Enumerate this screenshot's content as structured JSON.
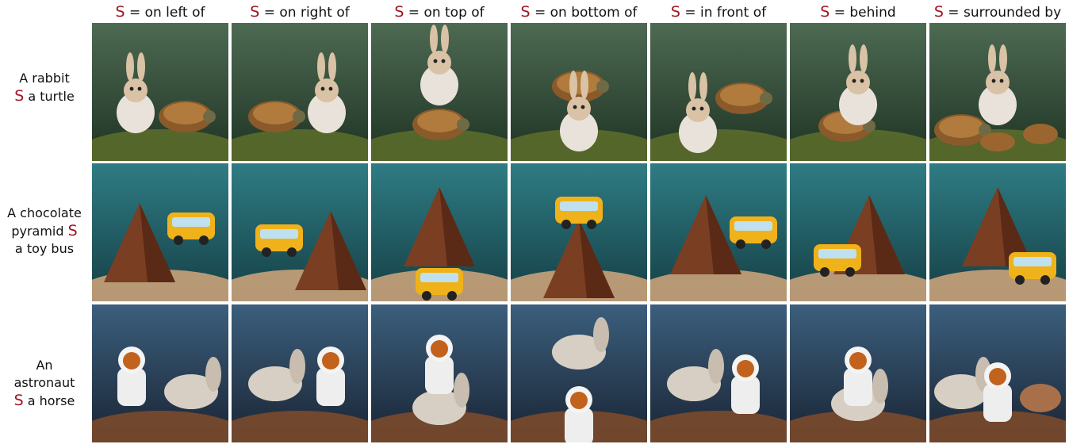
{
  "marker": "S",
  "columns": [
    {
      "relation": " = on left of"
    },
    {
      "relation": " = on right of"
    },
    {
      "relation": " = on top of"
    },
    {
      "relation": " = on bottom of"
    },
    {
      "relation": " = in front of"
    },
    {
      "relation": " = behind"
    },
    {
      "relation": " = surrounded by"
    }
  ],
  "rows": [
    {
      "line1": "A rabbit",
      "line2_marker": "S",
      "line2": " a turtle",
      "subject": "rabbit",
      "object": "turtle",
      "colors": {
        "bg1": "#4d6a52",
        "bg2": "#1f3324",
        "ground": "#5a6b2a"
      }
    },
    {
      "line1": "A chocolate",
      "line2_pre": "pyramid ",
      "line2_marker": "S",
      "line3": "a toy bus",
      "subject": "chocolate-pyramid",
      "object": "toy-bus",
      "colors": {
        "bg1": "#2f7c84",
        "bg2": "#153f45",
        "ground": "#c9a27a"
      }
    },
    {
      "line1": "An",
      "line2": "astronaut",
      "line3_marker": "S",
      "line3": " a horse",
      "subject": "astronaut",
      "object": "horse",
      "colors": {
        "bg1": "#3b5f7d",
        "bg2": "#1a2434",
        "ground": "#7a4a2c"
      }
    }
  ],
  "accent_color": "#a01523"
}
